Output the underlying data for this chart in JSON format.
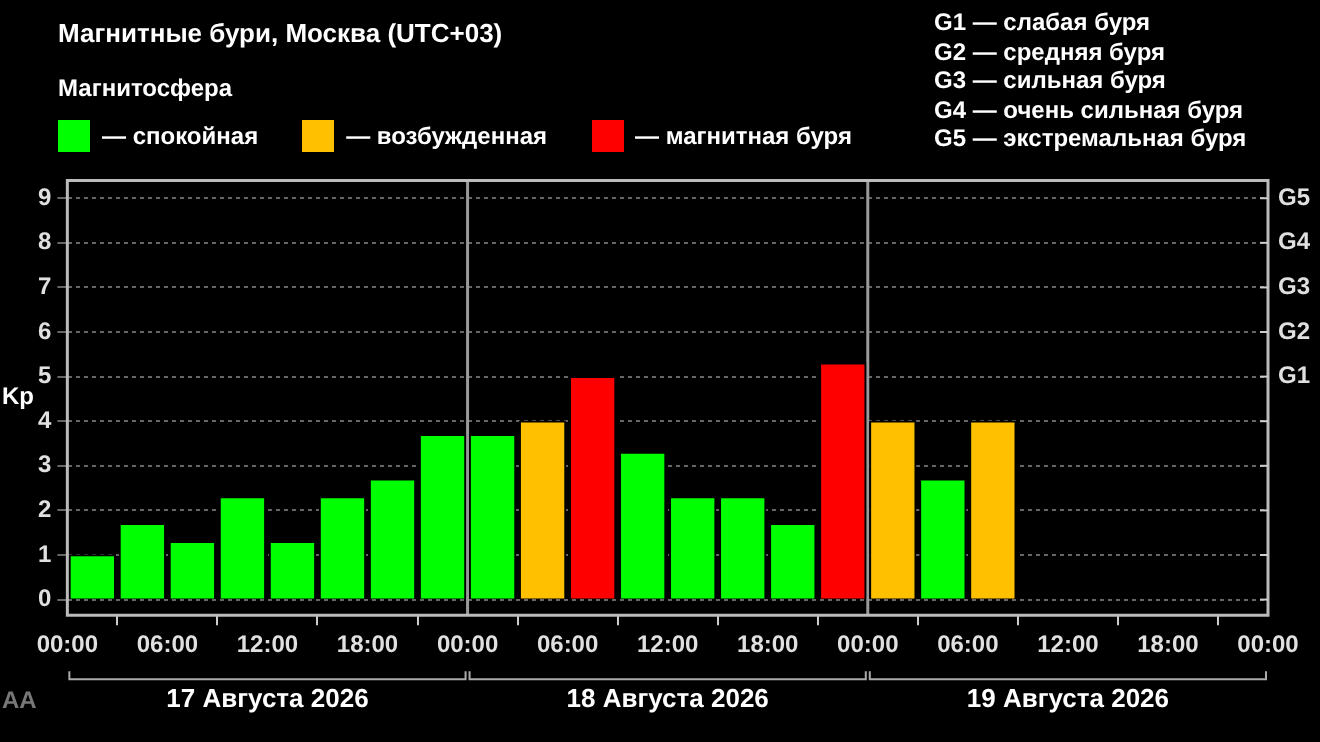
{
  "chart_data": {
    "type": "bar",
    "title": "Магнитные бури, Москва (UTC+03)",
    "ylabel": "Kp",
    "legend_title": "Магнитосфера",
    "legend": "top left",
    "grid": "y",
    "series": [
      {
        "name": "— спокойная",
        "color": "#00ff00",
        "x": [
          "2026-08-17T01:30",
          "2026-08-17T04:30",
          "2026-08-17T07:30",
          "2026-08-17T10:30",
          "2026-08-17T13:30",
          "2026-08-17T16:30",
          "2026-08-17T19:30",
          "2026-08-17T22:30",
          "2026-08-18T01:30",
          "2026-08-18T10:30",
          "2026-08-18T13:30",
          "2026-08-18T16:30",
          "2026-08-18T19:30",
          "2026-08-19T04:30"
        ],
        "values": [
          1.0,
          1.7,
          1.3,
          2.3,
          1.3,
          2.3,
          2.7,
          3.7,
          3.7,
          3.3,
          2.3,
          2.3,
          1.7,
          2.7
        ]
      },
      {
        "name": "— возбужденная",
        "color": "#ffc000",
        "x": [
          "2026-08-18T04:30",
          "2026-08-19T01:30",
          "2026-08-19T07:30"
        ],
        "values": [
          4.0,
          4.0,
          4.0
        ]
      },
      {
        "name": "— магнитная буря",
        "color": "#ff0000",
        "x": [
          "2026-08-18T07:30",
          "2026-08-18T22:30"
        ],
        "values": [
          5.0,
          5.3
        ]
      }
    ],
    "xlim": [
      "2026-08-17T00:00",
      "2026-08-20T00:00"
    ],
    "xticks": [
      {
        "value": "2026-08-17T00:00",
        "label": "00:00"
      },
      {
        "value": "2026-08-17T06:00",
        "label": "06:00"
      },
      {
        "value": "2026-08-17T12:00",
        "label": "12:00"
      },
      {
        "value": "2026-08-17T18:00",
        "label": "18:00"
      },
      {
        "value": "2026-08-18T00:00",
        "label": "00:00"
      },
      {
        "value": "2026-08-18T06:00",
        "label": "06:00"
      },
      {
        "value": "2026-08-18T12:00",
        "label": "12:00"
      },
      {
        "value": "2026-08-18T18:00",
        "label": "18:00"
      },
      {
        "value": "2026-08-19T00:00",
        "label": "00:00"
      },
      {
        "value": "2026-08-19T06:00",
        "label": "06:00"
      },
      {
        "value": "2026-08-19T12:00",
        "label": "12:00"
      },
      {
        "value": "2026-08-19T18:00",
        "label": "18:00"
      },
      {
        "value": "2026-08-20T00:00",
        "label": "00:00"
      }
    ],
    "ylim": [
      -0.35,
      9.4
    ],
    "yticks": [
      0,
      1,
      2,
      3,
      4,
      5,
      6,
      7,
      8,
      9
    ],
    "ref_lines": [
      {
        "axis": "x",
        "value": "2026-08-18T00:00",
        "color": "#9a9a9a"
      },
      {
        "axis": "x",
        "value": "2026-08-19T00:00",
        "color": "#9a9a9a"
      }
    ],
    "annotations": [
      "G1 — слабая буря",
      "G2 — средняя буря",
      "G3 — сильная буря",
      "G4 — очень сильная буря",
      "G5 — экстремальная буря",
      "17 Августа 2026",
      "18 Августа 2026",
      "19 Августа 2026",
      "AA",
      "G1",
      "G2",
      "G3",
      "G4",
      "G5"
    ]
  }
}
